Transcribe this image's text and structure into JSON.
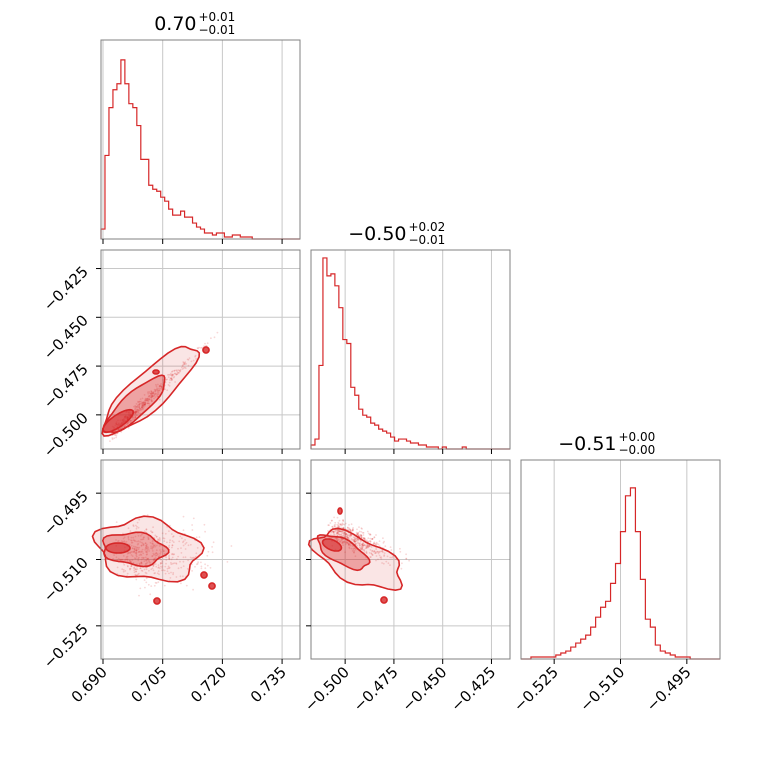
{
  "chart_data": {
    "type": "corner",
    "color": "#d62728",
    "parameters": [
      {
        "title": {
          "median": "0.70",
          "plus": "+0.01",
          "minus": "−0.01"
        },
        "range": [
          0.6895,
          0.7395
        ],
        "ticks": [
          0.69,
          0.705,
          0.72,
          0.735
        ],
        "tick_labels": [
          "0.690",
          "0.705",
          "0.720",
          "0.735"
        ],
        "hist": [
          0.05,
          0.42,
          0.66,
          0.75,
          0.78,
          0.9,
          0.78,
          0.68,
          0.66,
          0.57,
          0.4,
          0.4,
          0.27,
          0.25,
          0.24,
          0.21,
          0.19,
          0.15,
          0.12,
          0.12,
          0.14,
          0.11,
          0.11,
          0.08,
          0.06,
          0.05,
          0.03,
          0.03,
          0.02,
          0.03,
          0.03,
          0.01,
          0.01,
          0.02,
          0.02,
          0.01,
          0.01,
          0.01,
          0.0,
          0.0,
          0.0,
          0.0,
          0.0,
          0.0,
          0.0,
          0.0,
          0.0,
          0.0,
          0.0,
          0.0
        ]
      },
      {
        "title": {
          "median": "−0.50",
          "plus": "+0.02",
          "minus": "−0.01"
        },
        "range": [
          -0.5175,
          -0.4155
        ],
        "ticks": [
          -0.5,
          -0.475,
          -0.45,
          -0.425
        ],
        "tick_labels": [
          "−0.500",
          "−0.475",
          "−0.450",
          "−0.425"
        ],
        "hist": [
          0.02,
          0.05,
          0.42,
          0.96,
          0.87,
          0.88,
          0.82,
          0.71,
          0.55,
          0.53,
          0.31,
          0.27,
          0.2,
          0.17,
          0.16,
          0.13,
          0.12,
          0.1,
          0.09,
          0.08,
          0.06,
          0.04,
          0.05,
          0.05,
          0.04,
          0.03,
          0.03,
          0.02,
          0.02,
          0.01,
          0.01,
          0.01,
          0.0,
          0.01,
          0.0,
          0.0,
          0.0,
          0.0,
          0.01,
          0.0,
          0.0,
          0.0,
          0.0,
          0.0,
          0.0,
          0.0,
          0.0,
          0.0,
          0.0,
          0.0
        ]
      },
      {
        "title": {
          "median": "−0.51",
          "plus": "+0.00",
          "minus": "−0.00"
        },
        "range": [
          -0.5325,
          -0.4875
        ],
        "ticks": [
          -0.525,
          -0.51,
          -0.495
        ],
        "tick_labels": [
          "−0.525",
          "−0.510",
          "−0.495"
        ],
        "hist": [
          0.0,
          0.0,
          0.01,
          0.01,
          0.01,
          0.01,
          0.01,
          0.02,
          0.03,
          0.04,
          0.06,
          0.08,
          0.1,
          0.12,
          0.16,
          0.21,
          0.26,
          0.29,
          0.38,
          0.48,
          0.64,
          0.82,
          0.86,
          0.64,
          0.4,
          0.2,
          0.16,
          0.07,
          0.04,
          0.03,
          0.02,
          0.01,
          0.01,
          0.01,
          0.0,
          0.0,
          0.0,
          0.0,
          0.0,
          0.0
        ]
      }
    ],
    "pairs": [
      {
        "x_param": 0,
        "y_param": 1,
        "y_ticks": [
          -0.5,
          -0.475,
          -0.45,
          -0.425
        ],
        "y_tick_labels": [
          "−0.500",
          "−0.475",
          "−0.450",
          "−0.425"
        ]
      },
      {
        "x_param": 0,
        "y_param": 2,
        "y_ticks": [
          -0.525,
          -0.51,
          -0.495
        ],
        "y_tick_labels": [
          "−0.525",
          "−0.510",
          "−0.495"
        ]
      },
      {
        "x_param": 1,
        "y_param": 2,
        "y_ticks": [
          -0.525,
          -0.51,
          -0.495
        ],
        "y_tick_labels": [
          "−0.525",
          "−0.510",
          "−0.495"
        ]
      }
    ],
    "grid": true
  }
}
